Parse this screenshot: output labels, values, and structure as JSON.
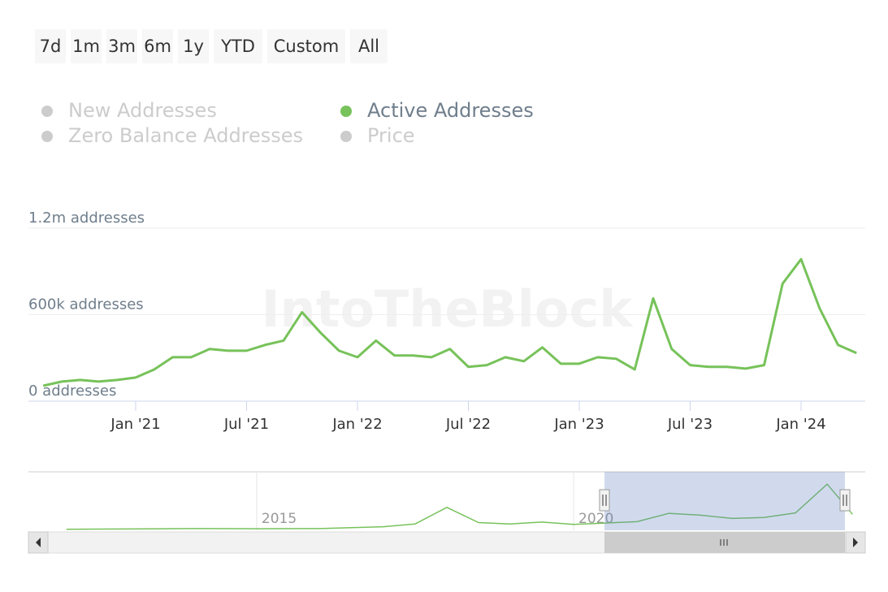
{
  "range_buttons": [
    "7d",
    "1m",
    "3m",
    "6m",
    "1y",
    "YTD",
    "Custom",
    "All"
  ],
  "watermark": "IntoTheBlock",
  "hidden_series": [
    {
      "name": "New Addresses",
      "color": "#cccccc"
    },
    {
      "name": "Zero Balance Addresses",
      "color": "#cccccc"
    },
    {
      "name": "Price",
      "color": "#cccccc"
    }
  ],
  "chart_data": [
    {
      "type": "line",
      "x": [
        "2020-08",
        "2020-09",
        "2020-10",
        "2020-11",
        "2020-12",
        "2021-01",
        "2021-02",
        "2021-03",
        "2021-04",
        "2021-05",
        "2021-06",
        "2021-07",
        "2021-08",
        "2021-09",
        "2021-10",
        "2021-11",
        "2021-12",
        "2022-01",
        "2022-02",
        "2022-03",
        "2022-04",
        "2022-05",
        "2022-06",
        "2022-07",
        "2022-08",
        "2022-09",
        "2022-10",
        "2022-11",
        "2022-12",
        "2023-01",
        "2023-02",
        "2023-03",
        "2023-04",
        "2023-05",
        "2023-06",
        "2023-07",
        "2023-08",
        "2023-09",
        "2023-10",
        "2023-11",
        "2023-12",
        "2024-01",
        "2024-02",
        "2024-03",
        "2024-04"
      ],
      "series": [
        {
          "name": "Active Addresses",
          "color": "#77c25a",
          "values": [
            107000,
            136000,
            147000,
            136000,
            147000,
            164000,
            220000,
            305000,
            305000,
            362000,
            350000,
            350000,
            390000,
            420000,
            617000,
            475000,
            350000,
            305000,
            420000,
            317000,
            317000,
            305000,
            362000,
            238000,
            250000,
            305000,
            277000,
            373000,
            260000,
            260000,
            305000,
            294000,
            220000,
            713000,
            362000,
            250000,
            238000,
            238000,
            226000,
            250000,
            815000,
            985000,
            645000,
            390000,
            334000
          ]
        }
      ],
      "ylim": [
        0,
        1200000
      ],
      "yticks": [
        {
          "value": 0,
          "label": "0 addresses"
        },
        {
          "value": 600000,
          "label": "600k addresses"
        },
        {
          "value": 1200000,
          "label": "1.2m addresses"
        }
      ],
      "xticks": [
        {
          "value": "2021-01",
          "label": "Jan '21"
        },
        {
          "value": "2021-07",
          "label": "Jul '21"
        },
        {
          "value": "2022-01",
          "label": "Jan '22"
        },
        {
          "value": "2022-07",
          "label": "Jul '22"
        },
        {
          "value": "2023-01",
          "label": "Jan '23"
        },
        {
          "value": "2023-07",
          "label": "Jul '23"
        },
        {
          "value": "2024-01",
          "label": "Jan '24"
        }
      ],
      "grid": true
    },
    {
      "type": "line",
      "x": [
        2012,
        2013,
        2014,
        2015,
        2016,
        2017,
        2017.5,
        2018,
        2018.5,
        2019,
        2019.5,
        2020,
        2020.5,
        2021,
        2021.5,
        2022,
        2022.5,
        2023,
        2023.5,
        2024,
        2024.4
      ],
      "series": [
        {
          "name": "Active Addresses",
          "color": "#77c25a",
          "values": [
            5000,
            10000,
            20000,
            15000,
            20000,
            60000,
            120000,
            480000,
            150000,
            120000,
            160000,
            110000,
            140000,
            170000,
            350000,
            310000,
            240000,
            260000,
            360000,
            985000,
            330000
          ]
        }
      ],
      "xlim": [
        2011.4,
        2024.6
      ],
      "xticks": [
        2015,
        2020
      ],
      "ylim": [
        0,
        1200000
      ]
    }
  ]
}
